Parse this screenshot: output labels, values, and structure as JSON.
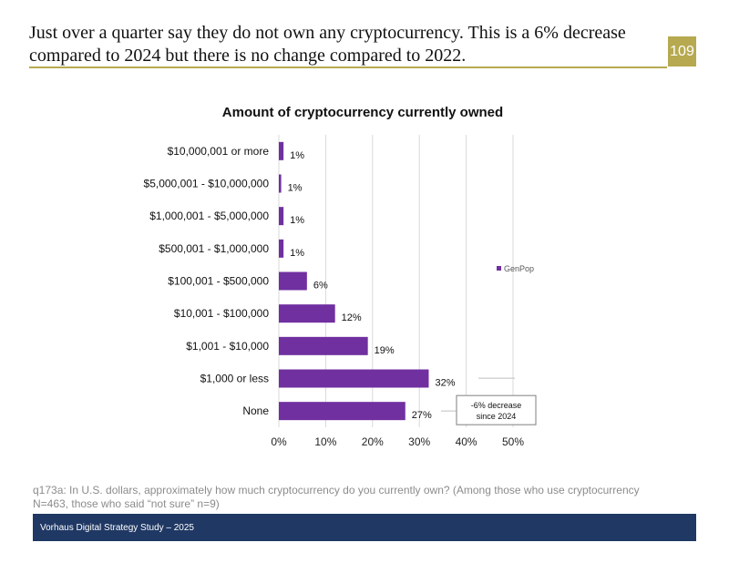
{
  "header": {
    "headline_line1": "Just over a quarter say they do not own any cryptocurrency. This is a 6% decrease",
    "headline_line2": "compared to 2024 but there is no change compared to 2022.",
    "page_number": "109",
    "accent_color": "#b6a94f"
  },
  "chart_data": {
    "type": "bar",
    "orientation": "horizontal",
    "title": "Amount of cryptocurrency currently owned",
    "categories": [
      "$10,000,001 or more",
      "$5,000,001 - $10,000,000",
      "$1,000,001 - $5,000,000",
      "$500,001 - $1,000,000",
      "$100,001 - $500,000",
      "$10,001 - $100,000",
      "$1,001 - $10,000",
      "$1,000 or less",
      "None"
    ],
    "series": [
      {
        "name": "GenPop",
        "color": "#7030a0",
        "values": [
          1,
          0.5,
          1,
          1,
          6,
          12,
          19,
          32,
          27
        ],
        "labels": [
          "1%",
          "1%",
          "1%",
          "1%",
          "6%",
          "12%",
          "19%",
          "32%",
          "27%"
        ]
      }
    ],
    "xlim": [
      0,
      50
    ],
    "xticks": [
      "0%",
      "10%",
      "20%",
      "30%",
      "40%",
      "50%"
    ],
    "grid": true,
    "legend": "right",
    "annotation": {
      "text_line1": "-6% decrease",
      "text_line2": "since 2024",
      "category": "None"
    }
  },
  "footnote": {
    "line1": "q173a: In U.S. dollars, approximately how much cryptocurrency do you currently own? (Among those who use cryptocurrency",
    "line2": "N=463, those who said “not sure” n=9)"
  },
  "footer": {
    "text": "Vorhaus Digital Strategy Study – 2025",
    "color": "#1f3864"
  }
}
